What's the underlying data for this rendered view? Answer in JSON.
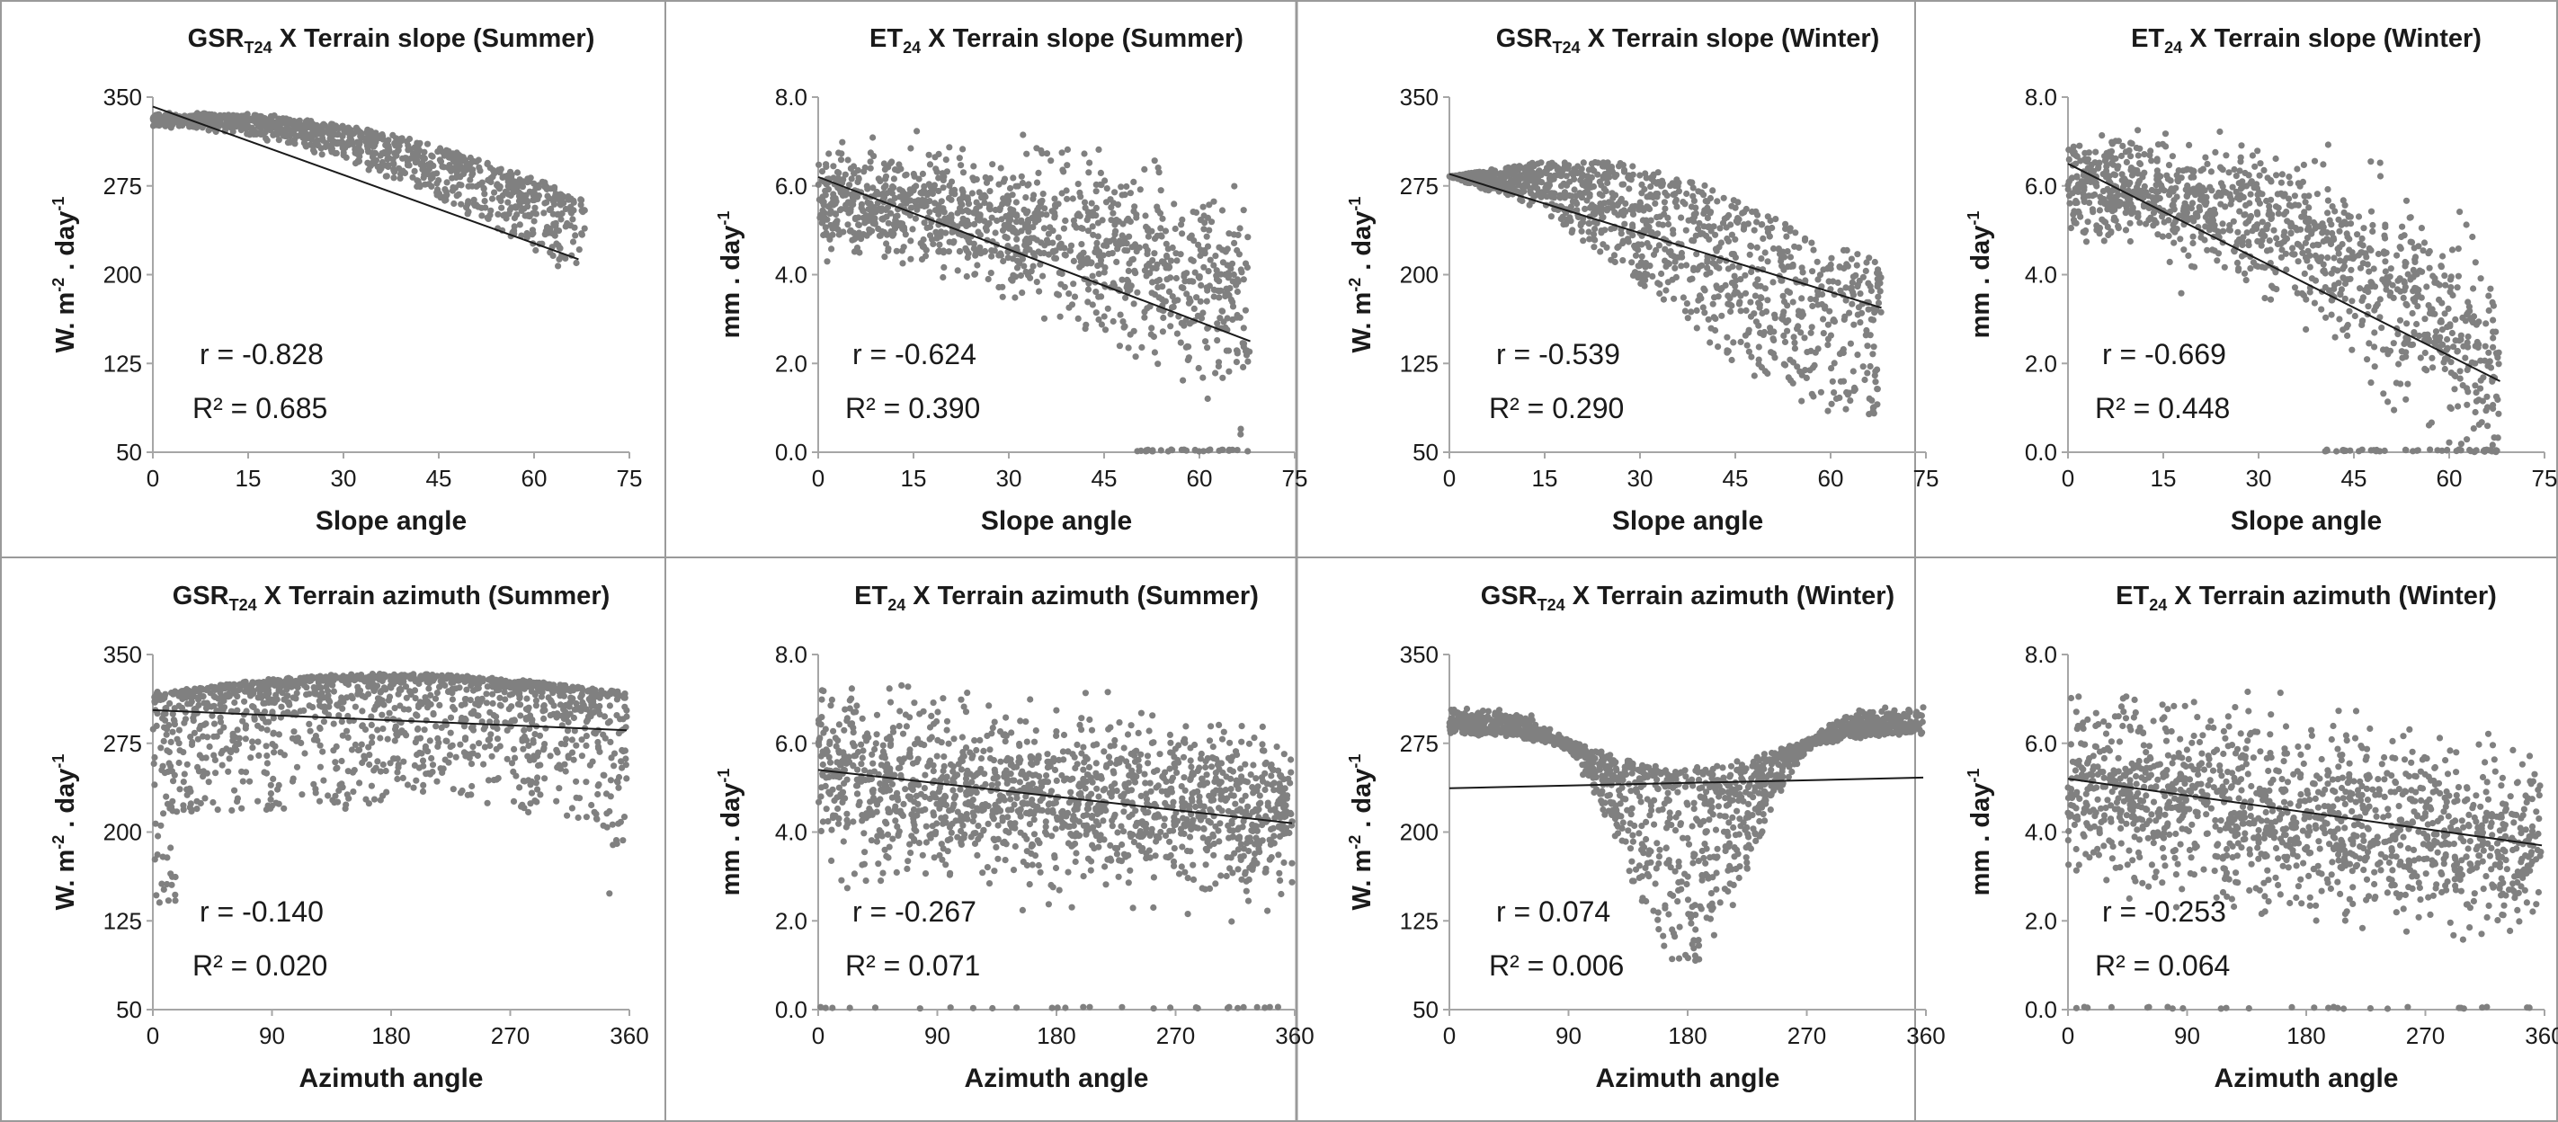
{
  "chart_data": [
    {
      "id": "gsr-slope-summer",
      "type": "scatter",
      "title": {
        "main": "GSR",
        "sub": "T24",
        "rest": " X Terrain slope (Summer)"
      },
      "xlabel": "Slope angle",
      "ylabel": {
        "main": "W. m",
        "sup1": "-2",
        "mid": " . day",
        "sup2": "-1"
      },
      "xlim": [
        0,
        75
      ],
      "ylim": [
        50,
        350
      ],
      "xticks": [
        0,
        15,
        30,
        45,
        60,
        75
      ],
      "yticks": [
        50,
        125,
        200,
        275,
        350
      ],
      "ytick_labels": [
        "50",
        "125",
        "200",
        "275",
        "350"
      ],
      "r": "r = -0.828",
      "r2": "R² = 0.685",
      "trend": {
        "x0": 0,
        "y0": 342,
        "x1": 67,
        "y1": 213
      },
      "scatter": {
        "kind": "slope-band",
        "xmax": 68,
        "n": 1100,
        "seed": 11,
        "f_a": 330,
        "f_b": 0.3,
        "f_c": 0.02,
        "spread_above": 6,
        "spread_below": 60,
        "floor": 125
      }
    },
    {
      "id": "et-slope-summer",
      "type": "scatter",
      "title": {
        "main": "ET",
        "sub": "24",
        "rest": " X Terrain slope (Summer)"
      },
      "xlabel": "Slope angle",
      "ylabel": {
        "main": "mm . day",
        "sup1": "",
        "mid": "",
        "sup2": "-1"
      },
      "xlim": [
        0,
        75
      ],
      "ylim": [
        0,
        8
      ],
      "xticks": [
        0,
        15,
        30,
        45,
        60,
        75
      ],
      "yticks": [
        0,
        2,
        4,
        6,
        8
      ],
      "ytick_labels": [
        "0.0",
        "2.0",
        "4.0",
        "6.0",
        "8.0"
      ],
      "r": "r = -0.624",
      "r2": "R² = 0.390",
      "trend": {
        "x0": 0,
        "y0": 6.2,
        "x1": 68,
        "y1": 2.5
      },
      "scatter": {
        "kind": "et-slope",
        "xmax": 68,
        "n": 1200,
        "seed": 23,
        "center_a": 5.6,
        "center_b": 0.0005,
        "spread": 1.2,
        "max": 7.7,
        "zero_from": 50
      }
    },
    {
      "id": "gsr-slope-winter",
      "type": "scatter",
      "title": {
        "main": "GSR",
        "sub": "T24",
        "rest": " X Terrain slope (Winter)"
      },
      "xlabel": "Slope angle",
      "ylabel": {
        "main": "W. m",
        "sup1": "-2",
        "mid": " . day",
        "sup2": "-1"
      },
      "xlim": [
        0,
        75
      ],
      "ylim": [
        50,
        350
      ],
      "xticks": [
        0,
        15,
        30,
        45,
        60,
        75
      ],
      "yticks": [
        50,
        125,
        200,
        275,
        350
      ],
      "ytick_labels": [
        "50",
        "125",
        "200",
        "275",
        "350"
      ],
      "r": "r = -0.539",
      "r2": "R² = 0.290",
      "trend": {
        "x0": 0,
        "y0": 285,
        "x1": 68,
        "y1": 172
      },
      "scatter": {
        "kind": "slope-fan",
        "xmax": 68,
        "n": 1200,
        "seed": 37,
        "upper": [
          283,
          295,
          295,
          275,
          240,
          210
        ],
        "lower": [
          283,
          255,
          205,
          140,
          85,
          80
        ],
        "floor": 78
      }
    },
    {
      "id": "et-slope-winter",
      "type": "scatter",
      "title": {
        "main": "ET",
        "sub": "24",
        "rest": " X Terrain slope (Winter)"
      },
      "xlabel": "Slope angle",
      "ylabel": {
        "main": "mm . day",
        "sup1": "",
        "mid": "",
        "sup2": "-1"
      },
      "xlim": [
        0,
        75
      ],
      "ylim": [
        0,
        8
      ],
      "xticks": [
        0,
        15,
        30,
        45,
        60,
        75
      ],
      "yticks": [
        0,
        2,
        4,
        6,
        8
      ],
      "ytick_labels": [
        "0.0",
        "2.0",
        "4.0",
        "6.0",
        "8.0"
      ],
      "r": "r = -0.669",
      "r2": "R² = 0.448",
      "trend": {
        "x0": 0,
        "y0": 6.5,
        "x1": 68,
        "y1": 1.6
      },
      "scatter": {
        "kind": "et-slope",
        "xmax": 68,
        "n": 1200,
        "seed": 41,
        "center_a": 6.0,
        "center_b": 0.0009,
        "spread": 1.2,
        "max": 7.3,
        "zero_from": 40
      }
    },
    {
      "id": "gsr-azimuth-summer",
      "type": "scatter",
      "title": {
        "main": "GSR",
        "sub": "T24",
        "rest": " X Terrain azimuth (Summer)"
      },
      "xlabel": "Azimuth angle",
      "ylabel": {
        "main": "W. m",
        "sup1": "-2",
        "mid": " . day",
        "sup2": "-1"
      },
      "xlim": [
        0,
        360
      ],
      "ylim": [
        50,
        350
      ],
      "xticks": [
        0,
        90,
        180,
        270,
        360
      ],
      "yticks": [
        50,
        125,
        200,
        275,
        350
      ],
      "ytick_labels": [
        "50",
        "125",
        "200",
        "275",
        "350"
      ],
      "r": "r = -0.140",
      "r2": "R² = 0.020",
      "trend": {
        "x0": 0,
        "y0": 303,
        "x1": 358,
        "y1": 286
      },
      "scatter": {
        "kind": "azimuth-summer",
        "xmax": 358,
        "n": 1500,
        "seed": 53
      }
    },
    {
      "id": "et-azimuth-summer",
      "type": "scatter",
      "title": {
        "main": "ET",
        "sub": "24",
        "rest": " X Terrain azimuth (Summer)"
      },
      "xlabel": "Azimuth angle",
      "ylabel": {
        "main": "mm . day",
        "sup1": "",
        "mid": "",
        "sup2": "-1"
      },
      "xlim": [
        0,
        360
      ],
      "ylim": [
        0,
        8
      ],
      "xticks": [
        0,
        90,
        180,
        270,
        360
      ],
      "yticks": [
        0,
        2,
        4,
        6,
        8
      ],
      "ytick_labels": [
        "0.0",
        "2.0",
        "4.0",
        "6.0",
        "8.0"
      ],
      "r": "r = -0.267",
      "r2": "R² = 0.071",
      "trend": {
        "x0": 0,
        "y0": 5.4,
        "x1": 358,
        "y1": 4.2
      },
      "scatter": {
        "kind": "et-azimuth",
        "xmax": 358,
        "n": 1500,
        "seed": 67,
        "center": 5.2,
        "drop": 0.9,
        "spread": 1.3,
        "max": 7.6
      }
    },
    {
      "id": "gsr-azimuth-winter",
      "type": "scatter",
      "title": {
        "main": "GSR",
        "sub": "T24",
        "rest": " X Terrain azimuth (Winter)"
      },
      "xlabel": "Azimuth angle",
      "ylabel": {
        "main": "W. m",
        "sup1": "-2",
        "mid": " . day",
        "sup2": "-1"
      },
      "xlim": [
        0,
        360
      ],
      "ylim": [
        50,
        350
      ],
      "xticks": [
        0,
        90,
        180,
        270,
        360
      ],
      "yticks": [
        50,
        125,
        200,
        275,
        350
      ],
      "ytick_labels": [
        "50",
        "125",
        "200",
        "275",
        "350"
      ],
      "r": "r = 0.074",
      "r2": "R² = 0.006",
      "trend": {
        "x0": 0,
        "y0": 237,
        "x1": 358,
        "y1": 246
      },
      "scatter": {
        "kind": "azimuth-winter",
        "xmax": 358,
        "n": 1500,
        "seed": 71
      }
    },
    {
      "id": "et-azimuth-winter",
      "type": "scatter",
      "title": {
        "main": "ET",
        "sub": "24",
        "rest": " X Terrain azimuth (Winter)"
      },
      "xlabel": "Azimuth angle",
      "ylabel": {
        "main": "mm . day",
        "sup1": "",
        "mid": "",
        "sup2": "-1"
      },
      "xlim": [
        0,
        360
      ],
      "ylim": [
        0,
        8
      ],
      "xticks": [
        0,
        90,
        180,
        270,
        360
      ],
      "yticks": [
        0,
        2,
        4,
        6,
        8
      ],
      "ytick_labels": [
        "0.0",
        "2.0",
        "4.0",
        "6.0",
        "8.0"
      ],
      "r": "r = -0.253",
      "r2": "R² = 0.064",
      "trend": {
        "x0": 0,
        "y0": 5.2,
        "x1": 358,
        "y1": 3.7
      },
      "scatter": {
        "kind": "et-azimuth",
        "xmax": 358,
        "n": 1400,
        "seed": 83,
        "center": 5.0,
        "drop": 1.4,
        "spread": 1.4,
        "max": 7.3
      }
    }
  ],
  "colors": {
    "points": "#808080",
    "text": "#1a1a1a",
    "trend": "#1a1a1a",
    "border": "#9a9a9a",
    "axis": "#a6a6a6"
  }
}
